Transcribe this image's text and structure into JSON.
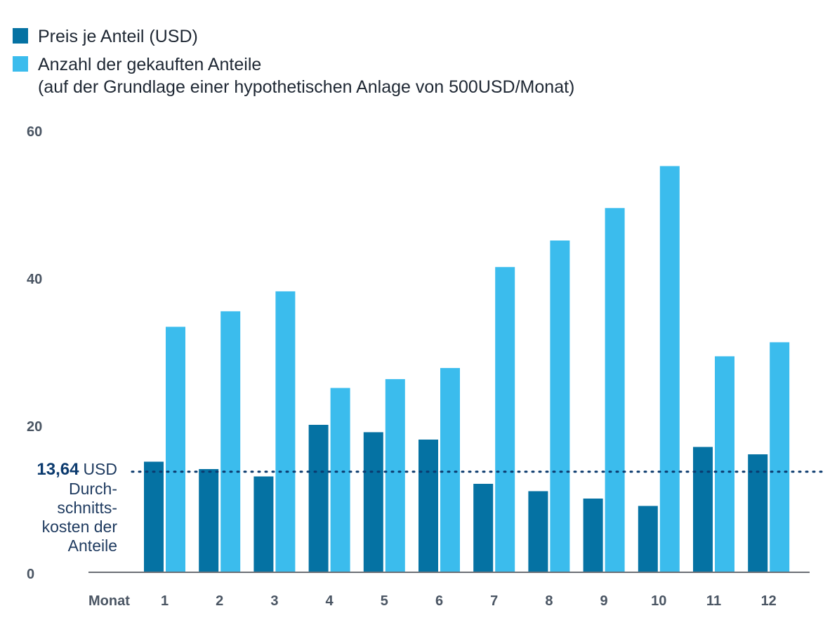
{
  "legend": {
    "series1_label": "Preis je Anteil (USD)",
    "series2_label": "Anzahl der gekauften Anteile",
    "series2_sublabel": "(auf der Grundlage einer hypothetischen Anlage von 500USD/Monat)"
  },
  "average": {
    "value_text": "13,64",
    "unit_text": "USD",
    "lines": [
      "Durch-",
      "schnitts-",
      "kosten der",
      "Anteile"
    ]
  },
  "colors": {
    "price": "#0572a3",
    "shares": "#3bbced",
    "axis": "#6b6f75",
    "avg_line": "#0b3a6e",
    "tick_text": "#4a5563"
  },
  "chart_data": {
    "type": "bar",
    "xlabel": "Monat",
    "ylabel": "",
    "categories": [
      "1",
      "2",
      "3",
      "4",
      "5",
      "6",
      "7",
      "8",
      "9",
      "10",
      "11",
      "12"
    ],
    "series": [
      {
        "name": "Preis je Anteil (USD)",
        "values": [
          15.0,
          14.0,
          13.0,
          20.0,
          19.0,
          18.0,
          12.0,
          11.0,
          10.0,
          9.0,
          17.0,
          16.0
        ]
      },
      {
        "name": "Anzahl der gekauften Anteile",
        "values": [
          33.3,
          35.4,
          38.1,
          25.0,
          26.2,
          27.7,
          41.4,
          45.0,
          49.4,
          55.1,
          29.3,
          31.2
        ]
      }
    ],
    "ylim": [
      0,
      60
    ],
    "yticks": [
      "0",
      "20",
      "40",
      "60"
    ],
    "average_price": 13.64,
    "grid": false,
    "legend_position": "top-left"
  }
}
